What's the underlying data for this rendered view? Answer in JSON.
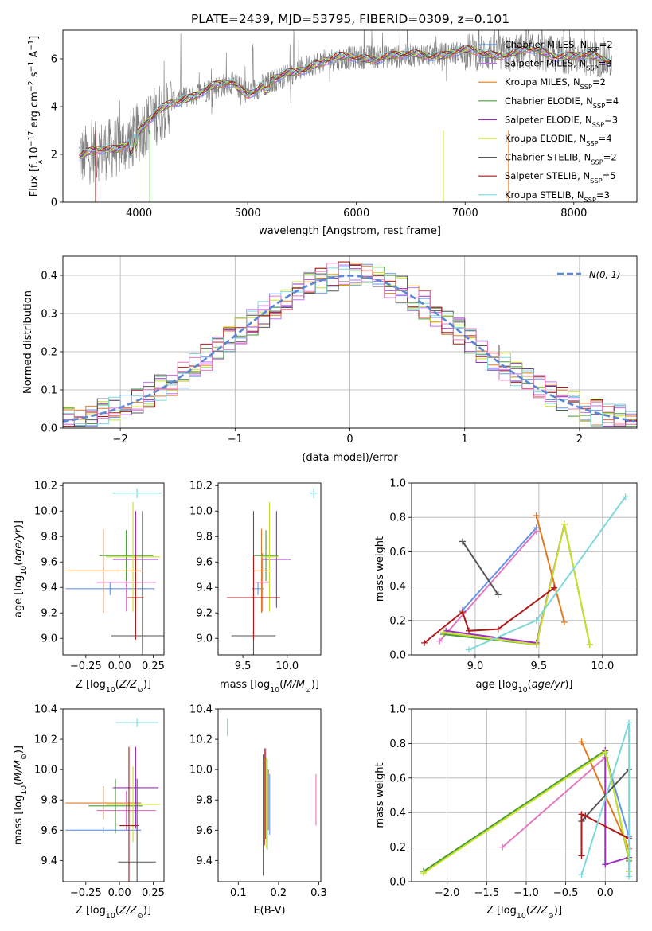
{
  "colors": {
    "chabrier_miles": "#6495ed",
    "salpeter_miles": "#c070f0",
    "kroupa_miles": "#e07b21",
    "chabrier_elodie": "#4a9a3a",
    "salpeter_elodie": "#9b30c0",
    "kroupa_elodie": "#c8e026",
    "chabrier_stelib": "#555555",
    "salpeter_stelib": "#b01818",
    "kroupa_stelib": "#7ed8da",
    "pink": "#e377c2",
    "data_gray": "#7f7f7f",
    "gauss": "#5b87d6",
    "grid": "#b0b0b0"
  },
  "chart_data": [
    {
      "id": "spectrum",
      "type": "line",
      "title": "PLATE=2439, MJD=53795, FIBERID=0309, z=0.101",
      "xlabel": "wavelength [Angstrom, rest frame]",
      "ylabel": "Flux [f_λ 10^-17 erg cm^-2 s^-1 A^-1]",
      "xlim": [
        3300,
        8580
      ],
      "ylim": [
        0,
        7.2
      ],
      "xticks": [
        4000,
        5000,
        6000,
        7000,
        8000
      ],
      "yticks": [
        0,
        2,
        4,
        6
      ],
      "grid": false,
      "legend_position": "top-right",
      "series": [
        {
          "name": "Chabrier MILES, N_SSP=2",
          "color_key": "chabrier_miles"
        },
        {
          "name": "Salpeter MILES, N_SSP=3",
          "color_key": "salpeter_miles"
        },
        {
          "name": "Kroupa MILES, N_SSP=2",
          "color_key": "kroupa_miles"
        },
        {
          "name": "Chabrier ELODIE, N_SSP=4",
          "color_key": "chabrier_elodie"
        },
        {
          "name": "Salpeter ELODIE, N_SSP=3",
          "color_key": "salpeter_elodie"
        },
        {
          "name": "Kroupa ELODIE, N_SSP=4",
          "color_key": "kroupa_elodie"
        },
        {
          "name": "Chabrier STELIB, N_SSP=2",
          "color_key": "chabrier_stelib"
        },
        {
          "name": "Salpeter STELIB, N_SSP=5",
          "color_key": "salpeter_stelib"
        },
        {
          "name": "Kroupa STELIB, N_SSP=3",
          "color_key": "kroupa_stelib"
        }
      ],
      "continuum": [
        [
          3450,
          1.9
        ],
        [
          3600,
          2.1
        ],
        [
          3800,
          2.3
        ],
        [
          3950,
          2.7
        ],
        [
          4100,
          3.4
        ],
        [
          4300,
          4.2
        ],
        [
          4500,
          4.5
        ],
        [
          4700,
          4.8
        ],
        [
          4850,
          5.0
        ],
        [
          5000,
          4.6
        ],
        [
          5200,
          5.0
        ],
        [
          5400,
          5.4
        ],
        [
          5600,
          5.8
        ],
        [
          5800,
          6.0
        ],
        [
          6000,
          6.05
        ],
        [
          6200,
          6.1
        ],
        [
          6400,
          6.1
        ],
        [
          6600,
          6.2
        ],
        [
          6800,
          6.2
        ],
        [
          7000,
          6.3
        ],
        [
          7200,
          6.25
        ],
        [
          7400,
          6.2
        ],
        [
          7600,
          6.35
        ],
        [
          7800,
          6.2
        ],
        [
          8000,
          6.15
        ],
        [
          8200,
          6.0
        ],
        [
          8350,
          5.9
        ]
      ]
    },
    {
      "id": "residuals",
      "type": "line",
      "xlabel": "(data-model)/error",
      "ylabel": "Normed distribution",
      "xlim": [
        -2.5,
        2.5
      ],
      "ylim": [
        0,
        0.45
      ],
      "xticks": [
        -2,
        -1,
        0,
        1,
        2
      ],
      "yticks": [
        0.0,
        0.1,
        0.2,
        0.3,
        0.4
      ],
      "grid": true,
      "legend_position": "top-right",
      "gaussian_label": "N(0, 1)"
    },
    {
      "id": "age_vs_Z",
      "type": "scatter",
      "xlabel": "Z [log10(Z/Z⊙)]",
      "ylabel": "age [log10(age/yr)]",
      "xlim": [
        -0.42,
        0.33
      ],
      "ylim": [
        8.87,
        10.22
      ],
      "xticks": [
        -0.25,
        0.0,
        0.25
      ],
      "yticks": [
        9.0,
        9.2,
        9.4,
        9.6,
        9.8,
        10.0,
        10.2
      ],
      "grid": false,
      "points": [
        {
          "color_key": "chabrier_miles",
          "x": -0.07,
          "xerr": 0.33,
          "y": 9.39,
          "yerr": 0.05
        },
        {
          "color_key": "kroupa_miles",
          "x": -0.12,
          "xerr": 0.28,
          "y": 9.53,
          "yerr": 0.33
        },
        {
          "color_key": "pink",
          "x": 0.05,
          "xerr": 0.22,
          "y": 9.44,
          "yerr": 0.23
        },
        {
          "color_key": "chabrier_elodie",
          "x": 0.05,
          "xerr": 0.2,
          "y": 9.65,
          "yerr": 0.2
        },
        {
          "color_key": "salpeter_elodie",
          "x": 0.12,
          "xerr": 0.17,
          "y": 9.62,
          "yerr": 0.38
        },
        {
          "color_key": "kroupa_elodie",
          "x": 0.1,
          "xerr": 0.2,
          "y": 9.64,
          "yerr": 0.43
        },
        {
          "color_key": "chabrier_stelib",
          "x": 0.17,
          "xerr": 0.23,
          "y": 9.02,
          "yerr": 0.98
        },
        {
          "color_key": "salpeter_stelib",
          "x": 0.12,
          "xerr": 0.06,
          "y": 9.32,
          "yerr": 0.33
        },
        {
          "color_key": "kroupa_stelib",
          "x": 0.13,
          "xerr": 0.18,
          "y": 10.14,
          "yerr": 0.04
        }
      ]
    },
    {
      "id": "age_vs_mass",
      "type": "scatter",
      "xlabel": "mass [log10(M/M⊙)]",
      "ylabel": "",
      "xlim": [
        9.22,
        10.38
      ],
      "ylim": [
        8.87,
        10.22
      ],
      "xticks": [
        9.5,
        10.0
      ],
      "yticks": [
        9.0,
        9.2,
        9.4,
        9.6,
        9.8,
        10.0,
        10.2
      ],
      "grid": false,
      "points": [
        {
          "color_key": "chabrier_miles",
          "x": 9.67,
          "xerr": 0.07,
          "y": 9.39,
          "yerr": 0.05
        },
        {
          "color_key": "kroupa_miles",
          "x": 9.71,
          "xerr": 0.09,
          "y": 9.53,
          "yerr": 0.33
        },
        {
          "color_key": "pink",
          "x": 9.72,
          "xerr": 0.08,
          "y": 9.44,
          "yerr": 0.23
        },
        {
          "color_key": "chabrier_elodie",
          "x": 9.76,
          "xerr": 0.14,
          "y": 9.65,
          "yerr": 0.2
        },
        {
          "color_key": "salpeter_elodie",
          "x": 9.88,
          "xerr": 0.16,
          "y": 9.62,
          "yerr": 0.38
        },
        {
          "color_key": "kroupa_elodie",
          "x": 9.8,
          "xerr": 0.1,
          "y": 9.64,
          "yerr": 0.43
        },
        {
          "color_key": "chabrier_stelib",
          "x": 9.62,
          "xerr": 0.25,
          "y": 9.02,
          "yerr": 0.98
        },
        {
          "color_key": "salpeter_stelib",
          "x": 9.62,
          "xerr": 0.3,
          "y": 9.32,
          "yerr": 0.33
        },
        {
          "color_key": "kroupa_stelib",
          "x": 10.3,
          "xerr": 0.04,
          "y": 10.14,
          "yerr": 0.04
        }
      ]
    },
    {
      "id": "weight_vs_age",
      "type": "line",
      "xlabel": "age [log10(age/yr)]",
      "ylabel": "mass weight",
      "xlim": [
        8.5,
        10.27
      ],
      "ylim": [
        0,
        1.0
      ],
      "xticks": [
        9.0,
        9.5,
        10.0
      ],
      "yticks": [
        0.0,
        0.2,
        0.4,
        0.6,
        0.8,
        1.0
      ],
      "grid": true,
      "series": [
        {
          "color_key": "chabrier_miles",
          "x": [
            8.9,
            9.48
          ],
          "y": [
            0.26,
            0.74
          ]
        },
        {
          "color_key": "pink",
          "x": [
            8.72,
            9.48
          ],
          "y": [
            0.08,
            0.72
          ]
        },
        {
          "color_key": "kroupa_miles",
          "x": [
            9.48,
            9.7
          ],
          "y": [
            0.81,
            0.19
          ]
        },
        {
          "color_key": "chabrier_elodie",
          "x": [
            8.75,
            9.48,
            9.7,
            9.9
          ],
          "y": [
            0.12,
            0.06,
            0.76,
            0.06
          ]
        },
        {
          "color_key": "salpeter_elodie",
          "x": [
            8.77,
            9.48,
            9.7
          ],
          "y": [
            0.14,
            0.07,
            0.76
          ]
        },
        {
          "color_key": "kroupa_elodie",
          "x": [
            8.75,
            9.48,
            9.7,
            9.9
          ],
          "y": [
            0.13,
            0.06,
            0.76,
            0.06
          ]
        },
        {
          "color_key": "chabrier_stelib",
          "x": [
            8.9,
            9.18
          ],
          "y": [
            0.66,
            0.35
          ]
        },
        {
          "color_key": "salpeter_stelib",
          "x": [
            8.6,
            8.9,
            8.95,
            9.18,
            9.62
          ],
          "y": [
            0.07,
            0.25,
            0.14,
            0.15,
            0.39
          ]
        },
        {
          "color_key": "kroupa_stelib",
          "x": [
            8.95,
            9.48,
            10.18
          ],
          "y": [
            0.03,
            0.2,
            0.92
          ]
        }
      ]
    },
    {
      "id": "mass_vs_Z",
      "type": "scatter",
      "xlabel": "Z [log10(Z/Z⊙)]",
      "ylabel": "mass [log10(M/M⊙)]",
      "xlim": [
        -0.42,
        0.33
      ],
      "ylim": [
        9.26,
        10.4
      ],
      "xticks": [
        -0.25,
        0.0,
        0.25
      ],
      "yticks": [
        9.4,
        9.6,
        9.8,
        10.0,
        10.2,
        10.4
      ],
      "grid": false,
      "points": [
        {
          "color_key": "chabrier_miles",
          "x": -0.12,
          "xerr": 0.28,
          "y": 9.6,
          "yerr": 0.02
        },
        {
          "color_key": "kroupa_miles",
          "x": -0.12,
          "xerr": 0.28,
          "y": 9.78,
          "yerr": 0.11
        },
        {
          "color_key": "pink",
          "x": 0.05,
          "xerr": 0.22,
          "y": 9.73,
          "yerr": 0.13
        },
        {
          "color_key": "chabrier_elodie",
          "x": -0.03,
          "xerr": 0.2,
          "y": 9.76,
          "yerr": 0.18
        },
        {
          "color_key": "salpeter_elodie",
          "x": 0.12,
          "xerr": 0.17,
          "y": 9.88,
          "yerr": 0.27
        },
        {
          "color_key": "kroupa_elodie",
          "x": 0.1,
          "xerr": 0.2,
          "y": 9.77,
          "yerr": 0.25
        },
        {
          "color_key": "chabrier_stelib",
          "x": 0.13,
          "xerr": 0.14,
          "y": 9.39,
          "yerr": 0.55
        },
        {
          "color_key": "salpeter_stelib",
          "x": 0.07,
          "xerr": 0.07,
          "y": 9.63,
          "yerr": 0.52
        },
        {
          "color_key": "kroupa_stelib",
          "x": 0.13,
          "xerr": 0.16,
          "y": 10.31,
          "yerr": 0.03
        }
      ]
    },
    {
      "id": "mass_vs_ebv",
      "type": "scatter",
      "xlabel": "E(B-V)",
      "ylabel": "",
      "xlim": [
        0.05,
        0.305
      ],
      "ylim": [
        9.26,
        10.4
      ],
      "xticks": [
        0.1,
        0.2,
        0.3
      ],
      "yticks": [
        9.4,
        9.6,
        9.8,
        10.0,
        10.2,
        10.4
      ],
      "grid": false,
      "points": [
        {
          "color_key": "kroupa_stelib",
          "x": 0.073,
          "y": 10.28,
          "yerr": 0.06
        },
        {
          "color_key": "chabrier_stelib",
          "x": 0.162,
          "y": 9.7,
          "yerr": 0.4
        },
        {
          "color_key": "salpeter_stelib",
          "x": 0.165,
          "y": 9.82,
          "yerr": 0.32
        },
        {
          "color_key": "salpeter_elodie",
          "x": 0.168,
          "y": 9.84,
          "yerr": 0.3
        },
        {
          "color_key": "kroupa_elodie",
          "x": 0.17,
          "y": 9.78,
          "yerr": 0.3
        },
        {
          "color_key": "chabrier_elodie",
          "x": 0.172,
          "y": 9.77,
          "yerr": 0.3
        },
        {
          "color_key": "kroupa_miles",
          "x": 0.175,
          "y": 9.8,
          "yerr": 0.2
        },
        {
          "color_key": "chabrier_miles",
          "x": 0.178,
          "y": 9.77,
          "yerr": 0.2
        },
        {
          "color_key": "pink",
          "x": 0.293,
          "y": 9.8,
          "yerr": 0.17
        }
      ]
    },
    {
      "id": "weight_vs_Z",
      "type": "line",
      "xlabel": "Z [log10(Z/Z⊙)]",
      "ylabel": "mass weight",
      "xlim": [
        -2.45,
        0.4
      ],
      "ylim": [
        0,
        1.0
      ],
      "xticks": [
        -2.0,
        -1.5,
        -1.0,
        -0.5,
        0.0
      ],
      "yticks": [
        0.0,
        0.2,
        0.4,
        0.6,
        0.8,
        1.0
      ],
      "grid": true,
      "series": [
        {
          "color_key": "chabrier_miles",
          "x": [
            0.0,
            0.3
          ],
          "y": [
            0.74,
            0.26
          ]
        },
        {
          "color_key": "pink",
          "x": [
            -1.3,
            0.0
          ],
          "y": [
            0.2,
            0.72
          ]
        },
        {
          "color_key": "kroupa_miles",
          "x": [
            -0.3,
            0.3
          ],
          "y": [
            0.81,
            0.19
          ]
        },
        {
          "color_key": "chabrier_elodie",
          "x": [
            -2.3,
            0.0,
            0.3,
            0.3
          ],
          "y": [
            0.06,
            0.76,
            0.12,
            0.06
          ]
        },
        {
          "color_key": "salpeter_elodie",
          "x": [
            0.3,
            0.0,
            0.0
          ],
          "y": [
            0.14,
            0.1,
            0.76
          ]
        },
        {
          "color_key": "kroupa_elodie",
          "x": [
            -2.3,
            0.0,
            0.3,
            0.3
          ],
          "y": [
            0.05,
            0.75,
            0.13,
            0.06
          ]
        },
        {
          "color_key": "chabrier_stelib",
          "x": [
            -0.3,
            0.3
          ],
          "y": [
            0.35,
            0.65
          ]
        },
        {
          "color_key": "salpeter_stelib",
          "x": [
            -0.3,
            -0.3,
            -0.25,
            0.3
          ],
          "y": [
            0.15,
            0.39,
            0.38,
            0.25
          ]
        },
        {
          "color_key": "kroupa_stelib",
          "x": [
            -0.3,
            0.3,
            0.3
          ],
          "y": [
            0.04,
            0.92,
            0.03
          ]
        }
      ]
    }
  ]
}
